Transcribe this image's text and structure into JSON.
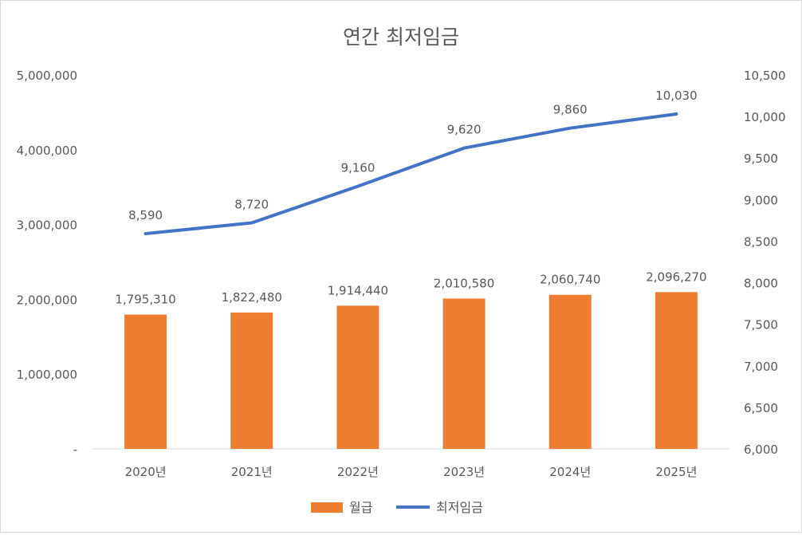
{
  "chart_data": {
    "type": "bar+line",
    "title": "연간 최저임금",
    "categories": [
      "2020년",
      "2021년",
      "2022년",
      "2023년",
      "2024년",
      "2025년"
    ],
    "series": [
      {
        "name": "월급",
        "type": "bar",
        "axis": "left",
        "color": "#ED7D31",
        "values": [
          1795310,
          1822480,
          1914440,
          2010580,
          2060740,
          2096270
        ],
        "labels": [
          "1,795,310",
          "1,822,480",
          "1,914,440",
          "2,010,580",
          "2,060,740",
          "2,096,270"
        ]
      },
      {
        "name": "최저임금",
        "type": "line",
        "axis": "right",
        "color": "#4472C4",
        "values": [
          8590,
          8720,
          9160,
          9620,
          9860,
          10030
        ],
        "labels": [
          "8,590",
          "8,720",
          "9,160",
          "9,620",
          "9,860",
          "10,030"
        ]
      }
    ],
    "y_left": {
      "range": [
        0,
        5000000
      ],
      "ticks": [
        0,
        1000000,
        2000000,
        3000000,
        4000000,
        5000000
      ],
      "tick_labels": [
        "-",
        "1,000,000",
        "2,000,000",
        "3,000,000",
        "4,000,000",
        "5,000,000"
      ]
    },
    "y_right": {
      "range": [
        6000,
        10500
      ],
      "ticks": [
        6000,
        6500,
        7000,
        7500,
        8000,
        8500,
        9000,
        9500,
        10000,
        10500
      ],
      "tick_labels": [
        "6,000",
        "6,500",
        "7,000",
        "7,500",
        "8,000",
        "8,500",
        "9,000",
        "9,500",
        "10,000",
        "10,500"
      ]
    },
    "grid": false,
    "legend": "bottom"
  }
}
